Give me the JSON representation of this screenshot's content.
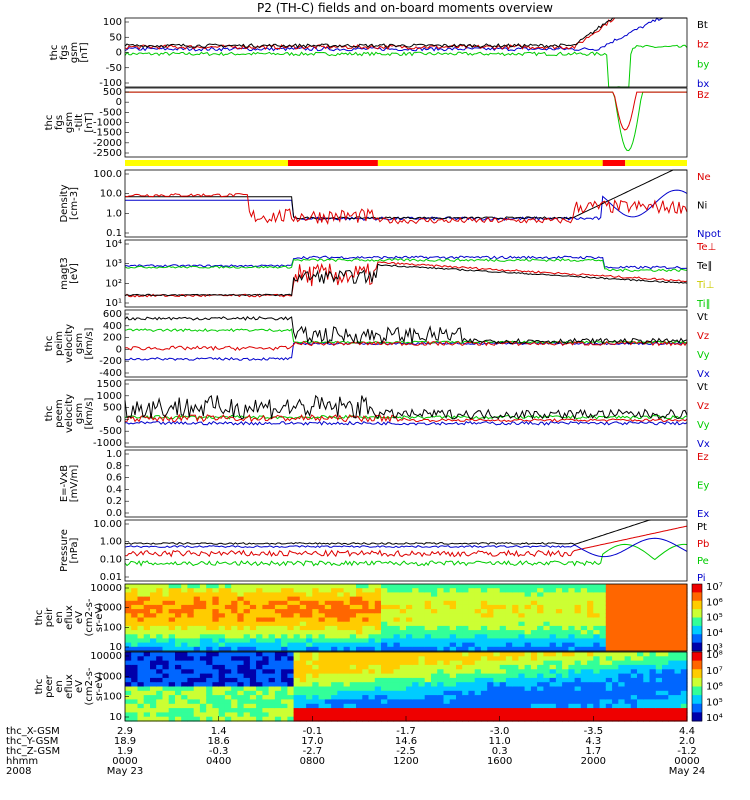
{
  "title": "P2 (TH-C) fields and on-board moments overview",
  "chart_data": {
    "type": "line",
    "x_ticks": [
      "0000",
      "0400",
      "0800",
      "1200",
      "1600",
      "2000",
      "0000"
    ],
    "dates": {
      "start": "May 23",
      "end": "May 24"
    },
    "panels": [
      {
        "id": "fgs",
        "ylabels": [
          "thc",
          "fgs",
          "gsm",
          "[nT]"
        ],
        "yticks": [
          "100",
          "50",
          "0",
          "-50",
          "-100"
        ],
        "legend": [
          {
            "name": "Bt",
            "color": "#000000"
          },
          {
            "name": "bz",
            "color": "#dd0000"
          },
          {
            "name": "by",
            "color": "#00cc00"
          },
          {
            "name": "bx",
            "color": "#0000cc"
          }
        ]
      },
      {
        "id": "fgs_big",
        "ylabels": [
          "thc",
          "fgs",
          "gsm",
          "-tilt",
          "[nT]"
        ],
        "yticks": [
          "500",
          "0",
          "-500",
          "-1000",
          "-1500",
          "-2000",
          "-2500"
        ],
        "legend": [
          {
            "name": "Bz",
            "color": "#dd0000"
          }
        ]
      },
      {
        "id": "bar",
        "segments": [
          {
            "from": 0,
            "to": 0.29,
            "color": "#ffff00"
          },
          {
            "from": 0.29,
            "to": 0.45,
            "color": "#ff0000"
          },
          {
            "from": 0.45,
            "to": 0.85,
            "color": "#ffff00"
          },
          {
            "from": 0.85,
            "to": 0.89,
            "color": "#ff0000"
          },
          {
            "from": 0.89,
            "to": 1,
            "color": "#ffff00"
          }
        ]
      },
      {
        "id": "density",
        "ylabels": [
          "Density",
          "[cm-3]"
        ],
        "yticks": [
          "100.0",
          "10.0",
          "1.0",
          "0.1"
        ],
        "legend": [
          {
            "name": "Ne",
            "color": "#dd0000"
          },
          {
            "name": "Ni",
            "color": "#000000"
          },
          {
            "name": "Npot",
            "color": "#0000cc"
          }
        ]
      },
      {
        "id": "temp",
        "ylabels": [
          "magt3",
          "[eV]"
        ],
        "yticks": [
          "10⁴",
          "10³",
          "10²",
          "10¹"
        ],
        "legend": [
          {
            "name": "Te⊥",
            "color": "#dd0000"
          },
          {
            "name": "Te∥",
            "color": "#000000"
          },
          {
            "name": "Ti⊥",
            "color": "#cccc00"
          },
          {
            "name": "Ti∥",
            "color": "#00cc00"
          }
        ]
      },
      {
        "id": "vi",
        "ylabels": [
          "thc",
          "peim",
          "velocity",
          "gsm",
          "[km/s]"
        ],
        "yticks": [
          "600",
          "400",
          "200",
          "0",
          "-200",
          "-400"
        ],
        "legend": [
          {
            "name": "Vt",
            "color": "#000000"
          },
          {
            "name": "Vz",
            "color": "#dd0000"
          },
          {
            "name": "Vy",
            "color": "#00cc00"
          },
          {
            "name": "Vx",
            "color": "#0000cc"
          }
        ]
      },
      {
        "id": "ve",
        "ylabels": [
          "thc",
          "peem",
          "velocity",
          "gsm",
          "[km/s]"
        ],
        "yticks": [
          "1500",
          "1000",
          "500",
          "0",
          "-500",
          "-1000"
        ],
        "legend": [
          {
            "name": "Vt",
            "color": "#000000"
          },
          {
            "name": "Vz",
            "color": "#dd0000"
          },
          {
            "name": "Vy",
            "color": "#00cc00"
          },
          {
            "name": "Vx",
            "color": "#0000cc"
          }
        ]
      },
      {
        "id": "efield",
        "ylabels": [
          "E=-VxB",
          "[mV/m]"
        ],
        "yticks": [
          "1.0",
          "0.8",
          "0.6",
          "0.4",
          "0.2",
          "0.0"
        ],
        "legend": [
          {
            "name": "Ez",
            "color": "#dd0000"
          },
          {
            "name": "Ey",
            "color": "#00cc00"
          },
          {
            "name": "Ex",
            "color": "#0000cc"
          }
        ]
      },
      {
        "id": "pressure",
        "ylabels": [
          "Pressure",
          "[nPa]"
        ],
        "yticks": [
          "10.00",
          "1.00",
          "0.10",
          "0.01"
        ],
        "legend": [
          {
            "name": "Pt",
            "color": "#000000"
          },
          {
            "name": "Pb",
            "color": "#dd0000"
          },
          {
            "name": "Pe",
            "color": "#00cc00"
          },
          {
            "name": "Pi",
            "color": "#0000cc"
          }
        ]
      },
      {
        "id": "ion_spec",
        "ylabels": [
          "thc",
          "peir",
          "en",
          "eflux",
          "eV",
          "(cm2-s-",
          "sr-eV)"
        ],
        "yticks": [
          "10000",
          "1000",
          "100",
          "10"
        ],
        "colorbar": [
          "10⁷",
          "10⁶",
          "10⁵",
          "10⁴",
          "10³"
        ]
      },
      {
        "id": "el_spec",
        "ylabels": [
          "thc",
          "peer",
          "en",
          "eflux",
          "eV",
          "(cm2-s-",
          "sr-eV)"
        ],
        "yticks": [
          "10000",
          "1000",
          "100",
          "10"
        ],
        "colorbar": [
          "10⁸",
          "10⁷",
          "10⁶",
          "10⁵",
          "10⁴"
        ]
      }
    ],
    "ephemeris": [
      {
        "label": "thc_X-GSM",
        "values": [
          "2.9",
          "1.4",
          "-0.1",
          "-1.7",
          "-3.0",
          "-3.5",
          "4.4"
        ]
      },
      {
        "label": "thc_Y-GSM",
        "values": [
          "18.9",
          "18.6",
          "17.0",
          "14.6",
          "11.0",
          "4.3",
          "2.0"
        ]
      },
      {
        "label": "thc_Z-GSM",
        "values": [
          "1.9",
          "-0.3",
          "-2.7",
          "-2.5",
          "0.3",
          "1.7",
          "-1.2"
        ]
      },
      {
        "label": "hhmm",
        "values": [
          "0000",
          "0400",
          "0800",
          "1200",
          "1600",
          "2000",
          "0000"
        ]
      },
      {
        "label": "2008",
        "values": [
          "May 23",
          "",
          "",
          "",
          "",
          "",
          "May 24"
        ]
      }
    ]
  }
}
